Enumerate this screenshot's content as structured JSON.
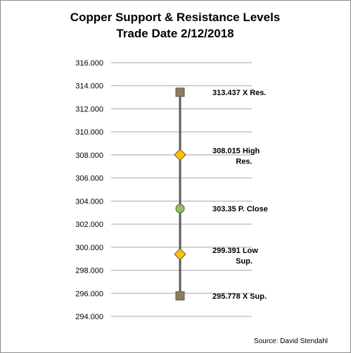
{
  "chart_data": {
    "type": "line",
    "title": "Copper Support & Resistance Levels",
    "subtitle": "Trade Date 2/12/2018",
    "ylim": [
      294,
      316
    ],
    "y_ticks": [
      "316.000",
      "314.000",
      "312.000",
      "310.000",
      "308.000",
      "306.000",
      "304.000",
      "302.000",
      "300.000",
      "298.000",
      "296.000",
      "294.000"
    ],
    "grid": true,
    "legend": "none",
    "points": [
      {
        "value": 313.437,
        "label_lines": [
          "313.437 X Res."
        ],
        "marker": "square",
        "color": "#8b7d5a"
      },
      {
        "value": 308.015,
        "label_lines": [
          "308.015 High",
          "Res."
        ],
        "marker": "diamond",
        "color": "#ffc000"
      },
      {
        "value": 303.35,
        "label_lines": [
          "303.35  P. Close"
        ],
        "marker": "circle",
        "color": "#92c353"
      },
      {
        "value": 299.391,
        "label_lines": [
          "299.391 Low",
          "Sup."
        ],
        "marker": "diamond",
        "color": "#ffc000"
      },
      {
        "value": 295.778,
        "label_lines": [
          "295.778  X Sup."
        ],
        "marker": "square",
        "color": "#8b7d5a"
      }
    ],
    "line_color": "#595959",
    "source": "Source: David Stendahl"
  }
}
